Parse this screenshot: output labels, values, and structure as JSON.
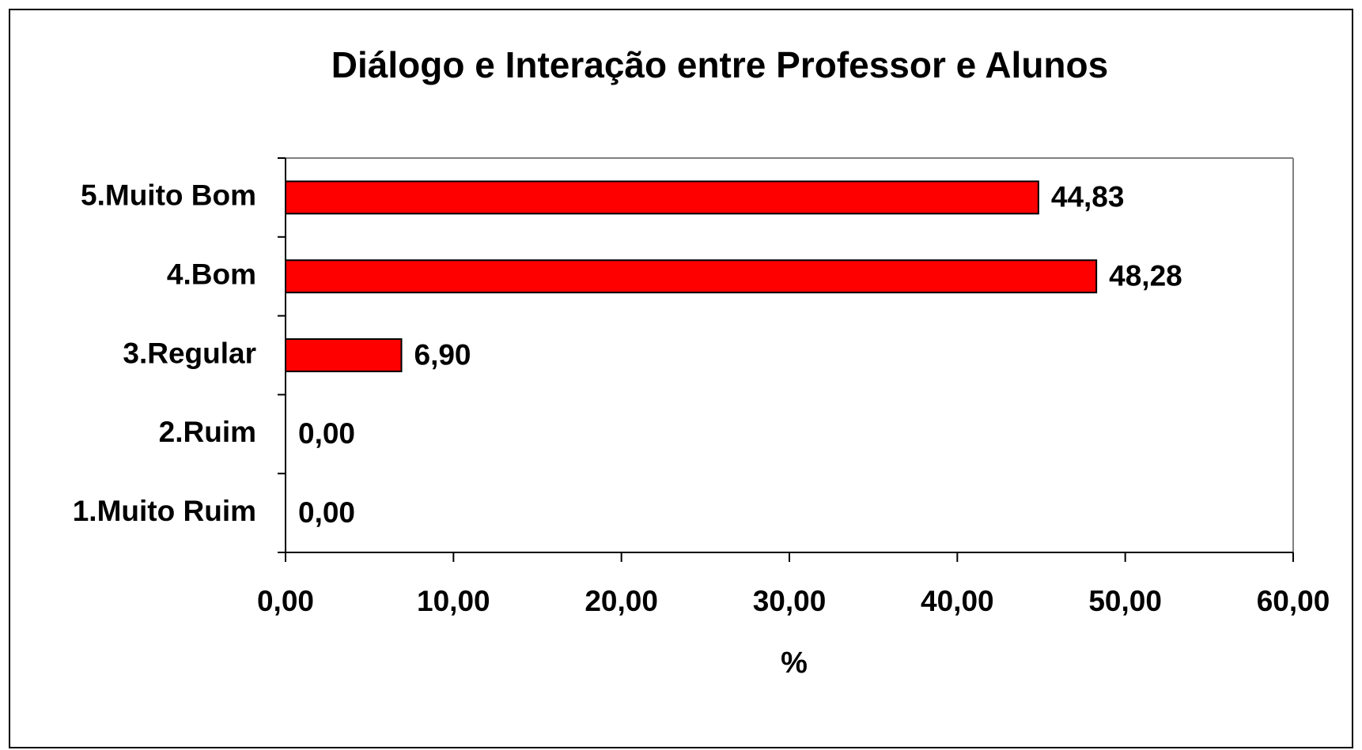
{
  "chart_data": {
    "type": "bar",
    "orientation": "horizontal",
    "title": "Diálogo e Interação entre Professor e Alunos",
    "x_label": "%",
    "categories": [
      "5.Muito Bom",
      "4.Bom",
      "3.Regular",
      "2.Ruim",
      "1.Muito Ruim"
    ],
    "values": [
      44.83,
      48.28,
      6.9,
      0,
      0
    ],
    "value_labels": [
      "44,83",
      "48,28",
      "6,90",
      "0,00",
      "0,00"
    ],
    "color": "#ff0000",
    "xlim": [
      0,
      60
    ],
    "xticks": [
      {
        "value": 0,
        "label": "0,00"
      },
      {
        "value": 10,
        "label": "10,00"
      },
      {
        "value": 20,
        "label": "20,00"
      },
      {
        "value": 30,
        "label": "30,00"
      },
      {
        "value": 40,
        "label": "40,00"
      },
      {
        "value": 50,
        "label": "50,00"
      },
      {
        "value": 60,
        "label": "60,00"
      }
    ]
  }
}
